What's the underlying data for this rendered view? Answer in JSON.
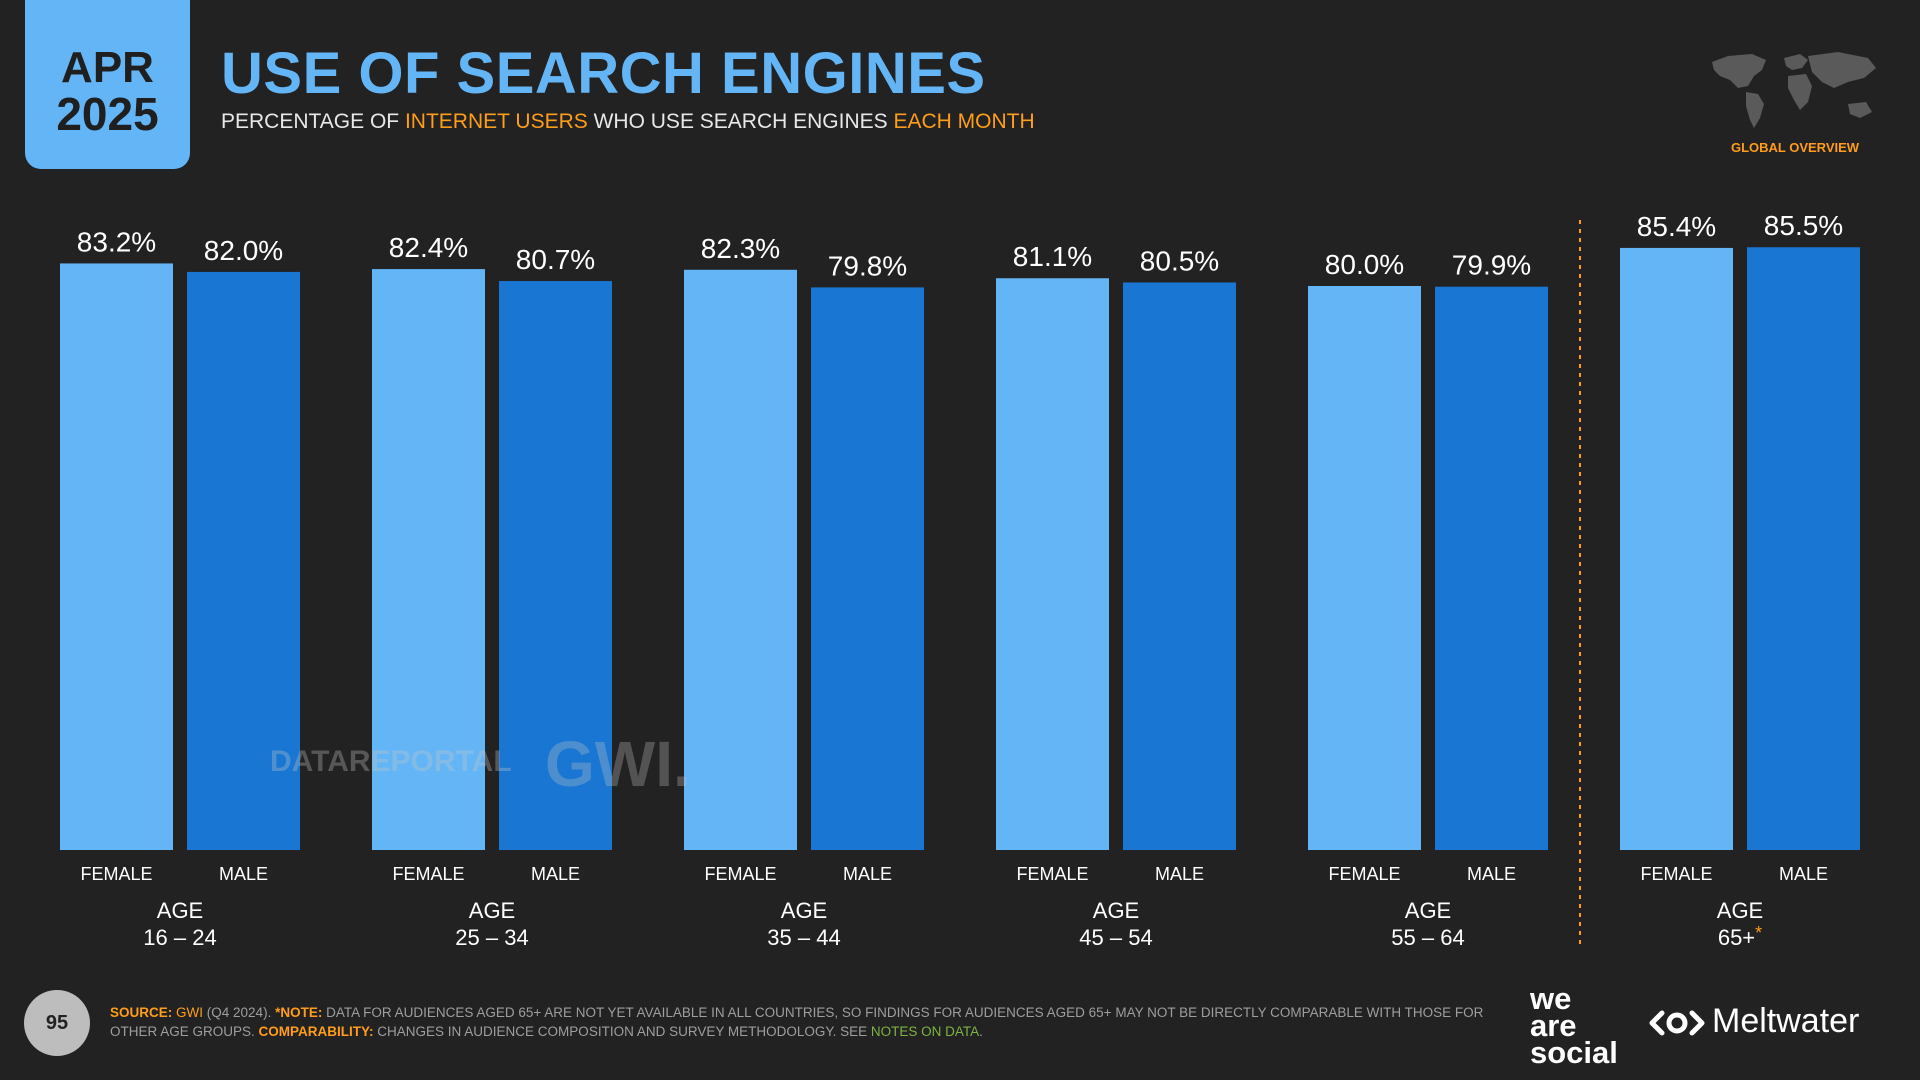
{
  "header": {
    "month": "APR",
    "year": "2025",
    "title": "USE OF SEARCH ENGINES",
    "subtitle_parts": [
      "PERCENTAGE OF ",
      "INTERNET USERS",
      " WHO USE SEARCH ENGINES ",
      "EACH MONTH"
    ],
    "region_label": "GLOBAL OVERVIEW"
  },
  "colors": {
    "female": "#64b5f6",
    "male": "#1976d2",
    "accent": "#ff9d1a",
    "background": "#222222"
  },
  "watermark": {
    "left": "DATAREPORTAL",
    "right": "GWI."
  },
  "chart_data": {
    "type": "bar",
    "title": "USE OF SEARCH ENGINES",
    "groups": [
      {
        "age_label": "AGE",
        "age_range": "16 – 24",
        "footnote": ""
      },
      {
        "age_label": "AGE",
        "age_range": "25 – 34",
        "footnote": ""
      },
      {
        "age_label": "AGE",
        "age_range": "35 – 44",
        "footnote": ""
      },
      {
        "age_label": "AGE",
        "age_range": "45 – 54",
        "footnote": ""
      },
      {
        "age_label": "AGE",
        "age_range": "55 – 64",
        "footnote": ""
      },
      {
        "age_label": "AGE",
        "age_range": "65+",
        "footnote": "*"
      }
    ],
    "series": [
      {
        "name": "FEMALE",
        "values": [
          83.2,
          82.4,
          82.3,
          81.1,
          80.0,
          85.4
        ],
        "labels": [
          "83.2%",
          "82.4%",
          "82.3%",
          "81.1%",
          "80.0%",
          "85.4%"
        ]
      },
      {
        "name": "MALE",
        "values": [
          82.0,
          80.7,
          79.8,
          80.5,
          79.9,
          85.5
        ],
        "labels": [
          "82.0%",
          "80.7%",
          "79.8%",
          "80.5%",
          "79.9%",
          "85.5%"
        ]
      }
    ],
    "ylim": [
      0,
      100
    ],
    "separator_before_group": 5
  },
  "footer": {
    "page_number": "95",
    "source_label": "SOURCE:",
    "source_name": "GWI",
    "source_detail": " (Q4 2024). ",
    "note_label": "*NOTE:",
    "note_text": " DATA FOR AUDIENCES AGED 65+ ARE NOT YET AVAILABLE IN ALL COUNTRIES, SO FINDINGS FOR AUDIENCES AGED 65+ MAY NOT BE DIRECTLY COMPARABLE WITH THOSE FOR OTHER AGE GROUPS. ",
    "comparability_label": "COMPARABILITY:",
    "comparability_text": " CHANGES IN AUDIENCE COMPOSITION AND SURVEY METHODOLOGY. SEE ",
    "notes_link": "NOTES ON DATA",
    "end": "."
  },
  "logos": {
    "was_line1": "we",
    "was_line2": "are",
    "was_line3": "social",
    "meltwater": "Meltwater"
  }
}
